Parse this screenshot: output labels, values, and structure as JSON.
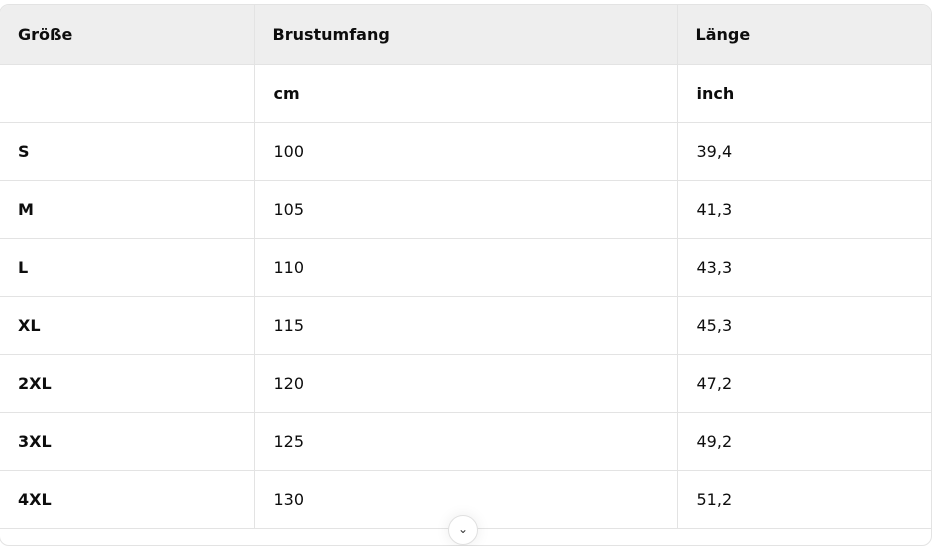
{
  "table": {
    "headers": [
      "Größe",
      "Brustumfang",
      "Länge"
    ],
    "units": [
      "",
      "cm",
      "inch"
    ],
    "rows": [
      [
        "S",
        "100",
        "39,4"
      ],
      [
        "M",
        "105",
        "41,3"
      ],
      [
        "L",
        "110",
        "43,3"
      ],
      [
        "XL",
        "115",
        "45,3"
      ],
      [
        "2XL",
        "120",
        "47,2"
      ],
      [
        "3XL",
        "125",
        "49,2"
      ],
      [
        "4XL",
        "130",
        "51,2"
      ]
    ]
  },
  "scroll_button": {
    "icon": "chevron-down-icon",
    "glyph": "⌄"
  }
}
